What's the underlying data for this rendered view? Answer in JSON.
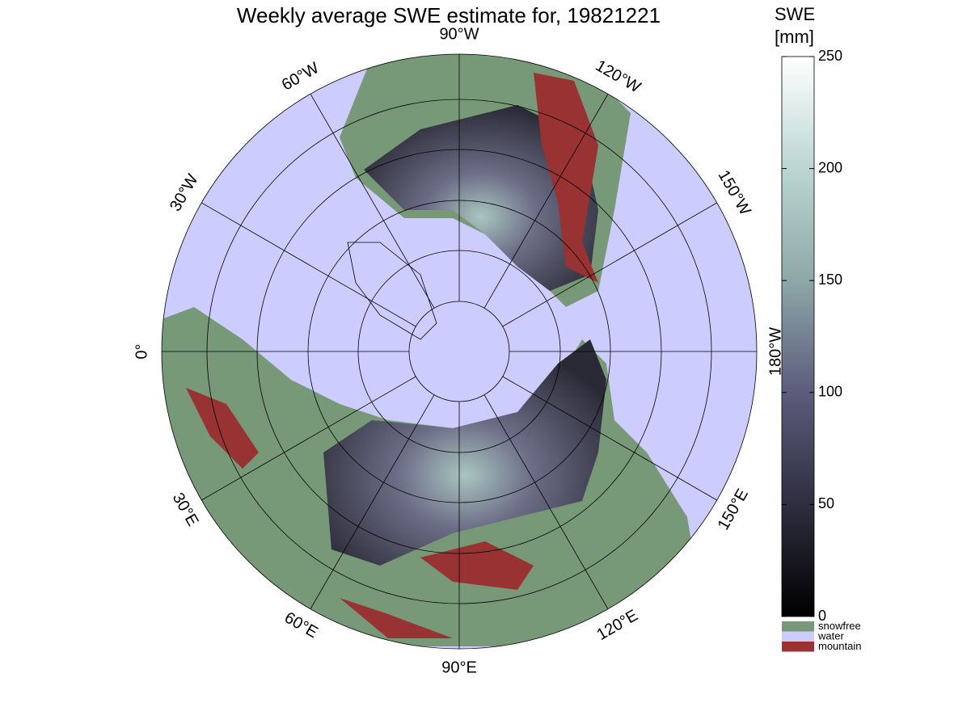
{
  "title": "Weekly average SWE estimate for, 19821221",
  "lon_ticks": [
    {
      "value": -90,
      "label": "90°W"
    },
    {
      "value": -120,
      "label": "120°W"
    },
    {
      "value": -150,
      "label": "150°W"
    },
    {
      "value": -180,
      "label": "180°W"
    },
    {
      "value": 150,
      "label": "150°E"
    },
    {
      "value": 120,
      "label": "120°E"
    },
    {
      "value": 90,
      "label": "90°E"
    },
    {
      "value": 60,
      "label": "60°E"
    },
    {
      "value": 30,
      "label": "30°E"
    },
    {
      "value": 0,
      "label": "0°"
    },
    {
      "value": -30,
      "label": "30°W"
    },
    {
      "value": -60,
      "label": "60°W"
    }
  ],
  "colorbar": {
    "label": [
      "SWE",
      "[mm]"
    ],
    "lim": [
      0,
      250
    ],
    "ticks": [
      0,
      50,
      100,
      150,
      200,
      250
    ]
  },
  "legend": [
    {
      "name": "snowfree",
      "color": "#779977"
    },
    {
      "name": "water",
      "color": "#ccccff"
    },
    {
      "name": "mountain",
      "color": "#993333"
    }
  ]
}
